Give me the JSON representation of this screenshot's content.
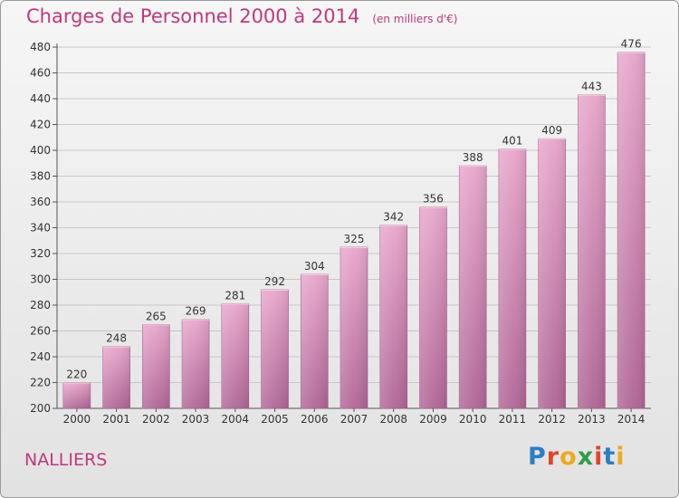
{
  "header": {
    "title": "Charges de Personnel 2000 à 2014",
    "unit_note": "(en milliers d'€)"
  },
  "footer": {
    "commune": "NALLIERS",
    "logo_text": "Proxiti"
  },
  "colors": {
    "title": "#c0387e",
    "bar_top": "#e8a6cc",
    "bar_bottom": "#b06696",
    "grid": "#c8c8c8"
  },
  "chart_data": {
    "type": "bar",
    "title": "Charges de Personnel 2000 à 2014",
    "subtitle": "(en milliers d'€)",
    "xlabel": "",
    "ylabel": "",
    "categories": [
      "2000",
      "2001",
      "2002",
      "2003",
      "2004",
      "2005",
      "2006",
      "2007",
      "2008",
      "2009",
      "2010",
      "2011",
      "2012",
      "2013",
      "2014"
    ],
    "values": [
      220,
      248,
      265,
      269,
      281,
      292,
      304,
      325,
      342,
      356,
      388,
      401,
      409,
      443,
      476
    ],
    "ylim": [
      200,
      480
    ],
    "yticks": [
      200,
      220,
      240,
      260,
      280,
      300,
      320,
      340,
      360,
      380,
      400,
      420,
      440,
      460,
      480
    ],
    "grid": true,
    "legend": "none"
  }
}
